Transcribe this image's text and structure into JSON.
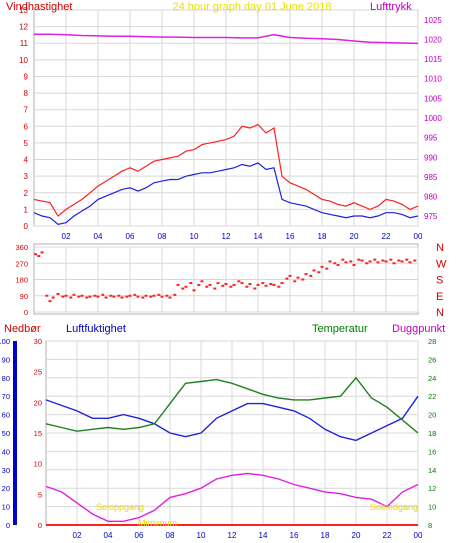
{
  "chart_data": [
    {
      "type": "line",
      "title": "24 hour graph day   01 June 2018",
      "left_axis_label": "Vindhastighet",
      "right_axis_label": "Lufttrykk",
      "left_ylim": [
        0,
        13
      ],
      "left_ticks": [
        "0",
        "1",
        "2",
        "3",
        "4",
        "5",
        "6",
        "7",
        "8",
        "9",
        "10",
        "11",
        "12",
        "13"
      ],
      "right_ylim": [
        972.5,
        1027.5
      ],
      "right_ticks": [
        "975",
        "980",
        "985",
        "990",
        "995",
        "1000",
        "1005",
        "1010",
        "1015",
        "1020",
        "1025"
      ],
      "x_hours": [
        0,
        24
      ],
      "x_ticks": [
        "02",
        "04",
        "06",
        "08",
        "10",
        "12",
        "14",
        "16",
        "18",
        "20",
        "22",
        "00"
      ],
      "grid": true,
      "series": [
        {
          "key": "gust",
          "color": "#ff2020",
          "axis": "left",
          "x": [
            0,
            0.5,
            1,
            1.5,
            2,
            2.5,
            3,
            3.5,
            4,
            4.5,
            5,
            5.5,
            6,
            6.5,
            7,
            7.5,
            8,
            8.5,
            9,
            9.5,
            10,
            10.5,
            11,
            11.5,
            12,
            12.5,
            13,
            13.5,
            14,
            14.5,
            15,
            15.5,
            16,
            16.5,
            17,
            17.5,
            18,
            18.5,
            19,
            19.5,
            20,
            20.5,
            21,
            21.5,
            22,
            22.5,
            23,
            23.5,
            24
          ],
          "values": [
            1.6,
            1.5,
            1.4,
            0.6,
            1.0,
            1.3,
            1.6,
            2.0,
            2.4,
            2.7,
            3.0,
            3.3,
            3.5,
            3.3,
            3.6,
            3.9,
            4.0,
            4.1,
            4.2,
            4.5,
            4.6,
            4.9,
            5.0,
            5.1,
            5.2,
            5.4,
            6.0,
            5.9,
            6.1,
            5.6,
            5.9,
            3.0,
            2.6,
            2.4,
            2.2,
            1.9,
            1.6,
            1.5,
            1.3,
            1.2,
            1.4,
            1.2,
            1.0,
            1.2,
            1.6,
            1.5,
            1.3,
            1.0,
            1.2
          ]
        },
        {
          "key": "wind",
          "color": "#2020e0",
          "axis": "left",
          "x": [
            0,
            0.5,
            1,
            1.5,
            2,
            2.5,
            3,
            3.5,
            4,
            4.5,
            5,
            5.5,
            6,
            6.5,
            7,
            7.5,
            8,
            8.5,
            9,
            9.5,
            10,
            10.5,
            11,
            11.5,
            12,
            12.5,
            13,
            13.5,
            14,
            14.5,
            15,
            15.5,
            16,
            16.5,
            17,
            17.5,
            18,
            18.5,
            19,
            19.5,
            20,
            20.5,
            21,
            21.5,
            22,
            22.5,
            23,
            23.5,
            24
          ],
          "values": [
            0.8,
            0.6,
            0.5,
            0.1,
            0.2,
            0.6,
            0.9,
            1.2,
            1.6,
            1.8,
            2.0,
            2.2,
            2.3,
            2.1,
            2.3,
            2.6,
            2.7,
            2.8,
            2.8,
            3.0,
            3.1,
            3.2,
            3.2,
            3.3,
            3.4,
            3.5,
            3.7,
            3.6,
            3.8,
            3.4,
            3.5,
            1.6,
            1.4,
            1.3,
            1.2,
            1.0,
            0.8,
            0.7,
            0.6,
            0.5,
            0.6,
            0.6,
            0.5,
            0.6,
            0.8,
            0.8,
            0.7,
            0.5,
            0.6
          ]
        },
        {
          "key": "pressure",
          "color": "#e020e0",
          "axis": "right",
          "x": [
            0,
            1,
            2,
            3,
            4,
            5,
            6,
            7,
            8,
            9,
            10,
            11,
            12,
            13,
            14,
            15,
            16,
            17,
            18,
            19,
            20,
            21,
            22,
            23,
            24
          ],
          "values": [
            1021.3,
            1021.3,
            1021.2,
            1021.0,
            1020.9,
            1020.8,
            1020.8,
            1020.7,
            1020.6,
            1020.6,
            1020.5,
            1020.5,
            1020.5,
            1020.4,
            1020.4,
            1021.2,
            1020.5,
            1020.3,
            1020.2,
            1020.0,
            1019.6,
            1019.3,
            1019.2,
            1019.1,
            1019.0
          ]
        }
      ]
    },
    {
      "type": "scatter",
      "ylabel_ticks_left": [
        "360",
        "270",
        "180",
        "90",
        "0"
      ],
      "compass_labels": [
        "N",
        "W",
        "S",
        "E",
        "N"
      ],
      "ylim": [
        0,
        360
      ],
      "x_hours": [
        0,
        24
      ],
      "grid": true,
      "series": [
        {
          "key": "direction",
          "color": "#ff2020",
          "x": [
            0.1,
            0.3,
            0.5,
            0.8,
            1.0,
            1.2,
            1.5,
            1.8,
            2.0,
            2.3,
            2.5,
            2.8,
            3.0,
            3.3,
            3.5,
            3.8,
            4.0,
            4.3,
            4.5,
            4.8,
            5.0,
            5.3,
            5.5,
            5.8,
            6.0,
            6.3,
            6.5,
            6.8,
            7.0,
            7.3,
            7.5,
            7.8,
            8.0,
            8.3,
            8.5,
            8.8,
            9.0,
            9.3,
            9.5,
            9.8,
            10.0,
            10.3,
            10.5,
            10.8,
            11.0,
            11.3,
            11.5,
            11.8,
            12.0,
            12.3,
            12.5,
            12.8,
            13.0,
            13.3,
            13.5,
            13.8,
            14.0,
            14.3,
            14.5,
            14.8,
            15.0,
            15.3,
            15.5,
            15.8,
            16.0,
            16.3,
            16.5,
            16.8,
            17.0,
            17.3,
            17.5,
            17.8,
            18.0,
            18.3,
            18.5,
            18.8,
            19.0,
            19.3,
            19.5,
            19.8,
            20.0,
            20.3,
            20.5,
            20.8,
            21.0,
            21.3,
            21.5,
            21.8,
            22.0,
            22.3,
            22.5,
            22.8,
            23.0,
            23.3,
            23.5,
            23.8
          ],
          "values": [
            320,
            310,
            330,
            90,
            60,
            80,
            100,
            85,
            90,
            80,
            95,
            85,
            90,
            80,
            85,
            90,
            85,
            95,
            80,
            90,
            85,
            90,
            80,
            85,
            90,
            95,
            85,
            80,
            90,
            85,
            90,
            95,
            85,
            90,
            80,
            95,
            150,
            130,
            140,
            160,
            120,
            150,
            170,
            140,
            150,
            130,
            160,
            145,
            155,
            140,
            150,
            170,
            160,
            140,
            155,
            130,
            150,
            160,
            145,
            155,
            150,
            140,
            160,
            185,
            200,
            170,
            190,
            180,
            210,
            200,
            230,
            220,
            250,
            240,
            280,
            270,
            260,
            290,
            275,
            280,
            260,
            290,
            285,
            270,
            280,
            290,
            275,
            285,
            280,
            290,
            270,
            285,
            280,
            290,
            275,
            285
          ]
        }
      ]
    },
    {
      "type": "line",
      "labels": {
        "nedbor": "Nedbør",
        "luftfuktighet": "Luftfuktighet",
        "temperatur": "Temperatur",
        "duggpunkt": "Duggpunkt"
      },
      "humidity_ylim": [
        0,
        100
      ],
      "humidity_ticks": [
        "0",
        "10",
        "20",
        "30",
        "40",
        "50",
        "60",
        "70",
        "80",
        "90",
        "100"
      ],
      "rain_ylim": [
        0,
        30
      ],
      "rain_ticks": [
        "0",
        "5",
        "10",
        "15",
        "20",
        "25",
        "30"
      ],
      "temp_ylim": [
        8,
        28
      ],
      "temp_ticks": [
        "8",
        "10",
        "12",
        "14",
        "16",
        "18",
        "20",
        "22",
        "24",
        "26",
        "28"
      ],
      "x_hours": [
        0,
        24
      ],
      "x_ticks": [
        "02",
        "04",
        "06",
        "08",
        "10",
        "12",
        "14",
        "16",
        "18",
        "20",
        "22",
        "00"
      ],
      "annotations": [
        "Soloppgang",
        "Solnedgang",
        "Mimimum"
      ],
      "series": [
        {
          "key": "humidity",
          "color": "#2020e0",
          "axis": "humidity",
          "x": [
            0,
            1,
            2,
            3,
            4,
            5,
            6,
            7,
            8,
            9,
            10,
            11,
            12,
            13,
            14,
            15,
            16,
            17,
            18,
            19,
            20,
            21,
            22,
            23,
            24
          ],
          "values": [
            68,
            65,
            62,
            58,
            58,
            60,
            58,
            55,
            50,
            48,
            50,
            58,
            62,
            66,
            66,
            64,
            62,
            58,
            52,
            48,
            46,
            50,
            54,
            58,
            70
          ]
        },
        {
          "key": "temperature",
          "color": "#208020",
          "axis": "temp",
          "x": [
            0,
            1,
            2,
            3,
            4,
            5,
            6,
            7,
            8,
            9,
            10,
            11,
            12,
            13,
            14,
            15,
            16,
            17,
            18,
            19,
            20,
            21,
            22,
            23,
            24
          ],
          "values": [
            19.0,
            18.6,
            18.2,
            18.4,
            18.6,
            18.4,
            18.6,
            19.0,
            21.2,
            23.4,
            23.6,
            23.8,
            23.4,
            22.8,
            22.2,
            21.8,
            21.6,
            21.6,
            21.8,
            22.0,
            24.0,
            21.8,
            20.8,
            19.4,
            18.0
          ]
        },
        {
          "key": "dewpoint",
          "color": "#e020e0",
          "axis": "temp",
          "x": [
            0,
            1,
            2,
            3,
            4,
            5,
            6,
            7,
            8,
            9,
            10,
            11,
            12,
            13,
            14,
            15,
            16,
            17,
            18,
            19,
            20,
            21,
            22,
            23,
            24
          ],
          "values": [
            12.2,
            11.6,
            10.4,
            9.2,
            8.4,
            8.4,
            8.8,
            9.6,
            11.0,
            11.4,
            12.0,
            13.0,
            13.4,
            13.6,
            13.4,
            13.0,
            12.4,
            12.0,
            11.6,
            11.4,
            11.0,
            10.8,
            10.0,
            11.6,
            12.4
          ]
        },
        {
          "key": "rain",
          "color": "#ff2020",
          "axis": "rain",
          "x": [
            0,
            24
          ],
          "values": [
            0,
            0
          ]
        }
      ]
    }
  ]
}
